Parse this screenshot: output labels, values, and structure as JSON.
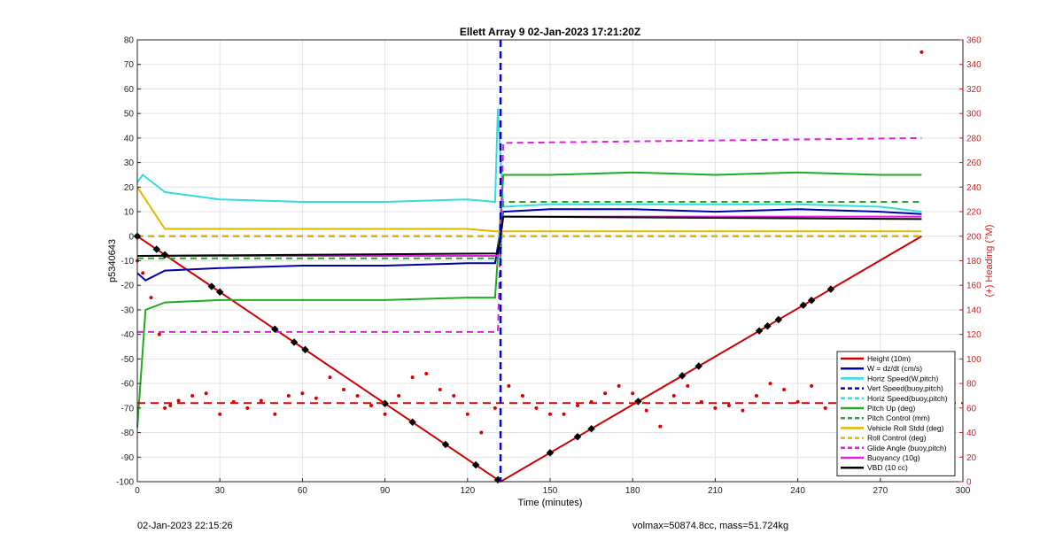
{
  "chart_data": {
    "type": "line",
    "title": "Ellett Array 9 02-Jan-2023 17:21:20Z",
    "xlabel": "Time (minutes)",
    "ylabel": "p5340643",
    "y2label": "(+) Heading (°M)",
    "xlim": [
      0,
      300
    ],
    "ylim": [
      -100,
      80
    ],
    "y2lim": [
      0,
      360
    ],
    "xticks": [
      0,
      30,
      60,
      90,
      120,
      150,
      180,
      210,
      240,
      270,
      300
    ],
    "yticks": [
      80,
      70,
      60,
      50,
      40,
      30,
      20,
      10,
      0,
      -10,
      -20,
      -30,
      -40,
      -50,
      -60,
      -70,
      -80,
      -90,
      -100
    ],
    "y2ticks": [
      0,
      20,
      40,
      60,
      80,
      100,
      120,
      140,
      160,
      180,
      200,
      220,
      240,
      260,
      280,
      300,
      320,
      340,
      360
    ],
    "grid": true,
    "legend_position": "bottom-right",
    "vertical_marker": {
      "x": 132,
      "color": "#0000cc"
    },
    "series": [
      {
        "name": "Height (10m)",
        "color": "#cc0000",
        "style": "solid",
        "x": [
          0,
          132,
          285
        ],
        "y": [
          0,
          -100,
          0
        ]
      },
      {
        "name": "W = dz/dt (cm/s)",
        "color": "#0000aa",
        "style": "solid",
        "x": [
          0,
          3,
          10,
          30,
          60,
          90,
          120,
          130,
          133,
          150,
          180,
          210,
          240,
          270,
          285
        ],
        "y": [
          -15,
          -18,
          -14,
          -13,
          -12,
          -12,
          -11,
          -11,
          10,
          11,
          11,
          10,
          11,
          10,
          9
        ]
      },
      {
        "name": "Horiz Speed(W,pitch)",
        "color": "#33dddd",
        "style": "solid",
        "x": [
          0,
          2,
          10,
          30,
          60,
          90,
          120,
          130,
          131,
          133,
          150,
          180,
          210,
          240,
          270,
          285
        ],
        "y": [
          22,
          25,
          18,
          15,
          14,
          14,
          15,
          14,
          52,
          12,
          13,
          13,
          13,
          13,
          12,
          10
        ]
      },
      {
        "name": "Vert Speed(buoy,pitch)",
        "color": "#0000cc",
        "style": "dashed",
        "x": [
          0,
          285
        ],
        "y": [
          0,
          0
        ]
      },
      {
        "name": "Horiz Speed(buoy,pitch)",
        "color": "#33dddd",
        "style": "dashed",
        "x": [
          0,
          285
        ],
        "y": [
          0,
          0
        ]
      },
      {
        "name": "Pitch Up (deg)",
        "color": "#22aa22",
        "style": "solid",
        "x": [
          0,
          3,
          10,
          30,
          60,
          90,
          120,
          130,
          133,
          150,
          180,
          210,
          240,
          270,
          285
        ],
        "y": [
          -78,
          -30,
          -27,
          -26,
          -26,
          -26,
          -25,
          -25,
          25,
          25,
          26,
          25,
          26,
          25,
          25
        ]
      },
      {
        "name": "Pitch Control (mm)",
        "color": "#22aa22",
        "style": "dashed",
        "x": [
          0,
          132,
          133,
          285
        ],
        "y": [
          -9,
          -9,
          14,
          14
        ]
      },
      {
        "name": "Vehicle Roll Stdd (deg)",
        "color": "#ddbb00",
        "style": "solid",
        "x": [
          0,
          10,
          60,
          120,
          130,
          133,
          150,
          200,
          250,
          285
        ],
        "y": [
          20,
          3,
          3,
          3,
          2,
          2,
          2,
          2,
          2,
          2
        ]
      },
      {
        "name": "Roll Control (deg)",
        "color": "#ddbb00",
        "style": "dashed",
        "x": [
          0,
          10,
          60,
          120,
          130,
          133,
          150,
          200,
          250,
          285
        ],
        "y": [
          0,
          0,
          0,
          0,
          0,
          0,
          0,
          0,
          0,
          0
        ]
      },
      {
        "name": "Glide Angle (buoy,pitch)",
        "color": "#dd22dd",
        "style": "dashed",
        "x": [
          0,
          131,
          133,
          285
        ],
        "y": [
          -39,
          -39,
          38,
          40
        ]
      },
      {
        "name": "Buoyancy (10g)",
        "color": "#dd22dd",
        "style": "solid",
        "x": [
          0,
          131,
          133,
          285
        ],
        "y": [
          -8,
          -8,
          8,
          8
        ]
      },
      {
        "name": "VBD (10 cc)",
        "color": "#000000",
        "style": "solid",
        "x": [
          0,
          131,
          133,
          285
        ],
        "y": [
          -8,
          -7,
          8,
          7
        ]
      }
    ],
    "heading": {
      "color": "#dd0000",
      "mean_y2": 64,
      "x": [
        0,
        2,
        5,
        8,
        10,
        12,
        15,
        20,
        25,
        30,
        35,
        40,
        45,
        50,
        55,
        60,
        65,
        70,
        75,
        80,
        85,
        90,
        95,
        100,
        105,
        110,
        115,
        120,
        125,
        130,
        135,
        140,
        145,
        150,
        155,
        160,
        165,
        170,
        175,
        180,
        185,
        190,
        195,
        200,
        205,
        210,
        215,
        220,
        225,
        230,
        235,
        240,
        245,
        250,
        255,
        260,
        265,
        270,
        275,
        280,
        285
      ],
      "y2": [
        180,
        170,
        150,
        120,
        60,
        62,
        66,
        70,
        72,
        55,
        65,
        60,
        66,
        55,
        70,
        72,
        68,
        85,
        75,
        70,
        62,
        55,
        70,
        85,
        88,
        75,
        70,
        55,
        40,
        60,
        78,
        70,
        60,
        55,
        55,
        62,
        65,
        72,
        78,
        72,
        58,
        45,
        70,
        78,
        65,
        60,
        62,
        58,
        70,
        80,
        75,
        65,
        78,
        60,
        72,
        62,
        60,
        68,
        72,
        65,
        350
      ]
    }
  },
  "markers": {
    "label_x": [
      0,
      7,
      10,
      27,
      30,
      50,
      57,
      61,
      90,
      100,
      112,
      123,
      131,
      150,
      160,
      165,
      182,
      198,
      204,
      226,
      229,
      233,
      242,
      245,
      252
    ]
  },
  "footer": {
    "left": "02-Jan-2023 22:15:26",
    "right": "volmax=50874.8cc, mass=51.724kg"
  }
}
